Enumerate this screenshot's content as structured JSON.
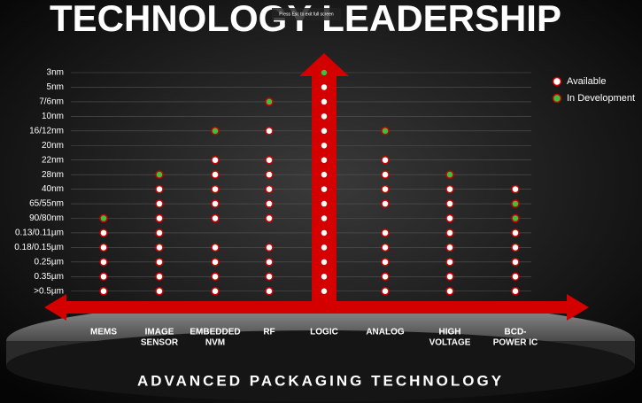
{
  "header": {
    "title": "TECHNOLOGY LEADERSHIP",
    "overlay": "Press Esc to exit full screen"
  },
  "footer": "ADVANCED PACKAGING TECHNOLOGY",
  "legend": [
    {
      "label": "Available",
      "color": "#ffffff"
    },
    {
      "label": "In Development",
      "color": "#3fbf3f"
    }
  ],
  "rows": [
    "3nm",
    "5nm",
    "7/6nm",
    "10nm",
    "16/12nm",
    "20nm",
    "22nm",
    "28nm",
    "40nm",
    "65/55nm",
    "90/80nm",
    "0.13/0.11µm",
    "0.18/0.15µm",
    "0.25µm",
    "0.35µm",
    ">0.5µm"
  ],
  "columns": [
    {
      "label": [
        "MEMS"
      ],
      "dots": [
        null,
        null,
        null,
        null,
        null,
        null,
        null,
        null,
        null,
        null,
        1,
        0,
        0,
        0,
        0,
        0
      ]
    },
    {
      "label": [
        "IMAGE",
        "SENSOR"
      ],
      "dots": [
        null,
        null,
        null,
        null,
        null,
        null,
        null,
        1,
        0,
        0,
        0,
        0,
        0,
        0,
        0,
        0
      ]
    },
    {
      "label": [
        "EMBEDDED",
        "NVM"
      ],
      "dots": [
        null,
        null,
        null,
        null,
        1,
        null,
        0,
        0,
        0,
        0,
        0,
        null,
        0,
        0,
        0,
        0
      ]
    },
    {
      "label": [
        "RF"
      ],
      "dots": [
        null,
        null,
        1,
        null,
        0,
        null,
        0,
        0,
        0,
        0,
        0,
        null,
        0,
        0,
        0,
        0
      ]
    },
    {
      "label": [
        "LOGIC"
      ],
      "dots": [
        1,
        0,
        0,
        0,
        0,
        0,
        0,
        0,
        0,
        0,
        0,
        0,
        0,
        0,
        0,
        0
      ]
    },
    {
      "label": [
        "ANALOG"
      ],
      "dots": [
        null,
        null,
        null,
        null,
        1,
        null,
        0,
        0,
        0,
        0,
        null,
        0,
        0,
        0,
        0,
        0
      ]
    },
    {
      "label": [
        "HIGH",
        "VOLTAGE"
      ],
      "dots": [
        null,
        null,
        null,
        null,
        null,
        null,
        null,
        1,
        0,
        0,
        0,
        0,
        0,
        0,
        0,
        0
      ]
    },
    {
      "label": [
        "BCD-",
        "POWER IC"
      ],
      "dots": [
        null,
        null,
        null,
        null,
        null,
        null,
        null,
        null,
        0,
        1,
        1,
        0,
        0,
        0,
        0,
        0
      ]
    }
  ]
}
